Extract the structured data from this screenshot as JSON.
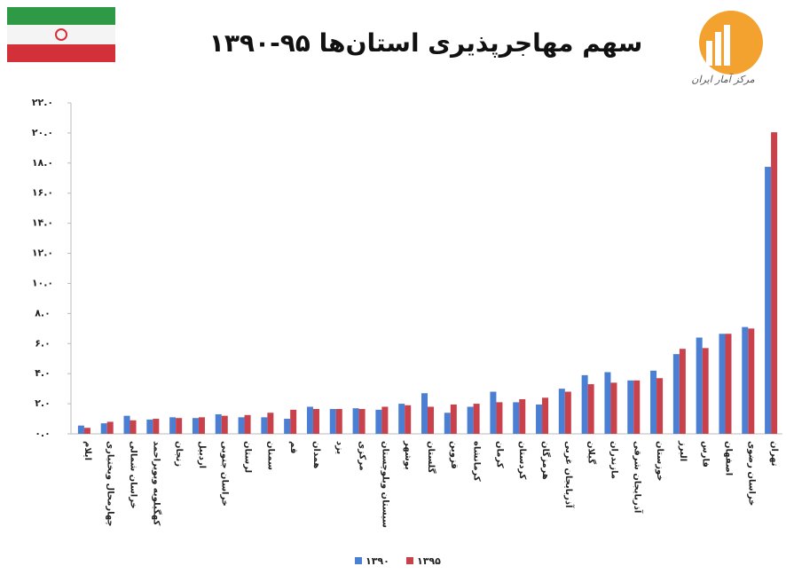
{
  "chart_data": {
    "type": "bar",
    "title": "سهم مهاجرپذیری استان‌ها ۹۵-۱۳۹۰",
    "logo_text": "مرکز آمار ایران",
    "categories": [
      "ایلام",
      "چهارمحال وبختیاری",
      "خراسان شمالی",
      "کهگیلویه وبویراحمد",
      "زنجان",
      "اردبیل",
      "خراسان جنوبی",
      "لرستان",
      "سمنان",
      "قم",
      "همدان",
      "یزد",
      "مرکزی",
      "سیستان وبلوچستان",
      "بوشهر",
      "گلستان",
      "قزوین",
      "کرمانشاه",
      "کرمان",
      "کردستان",
      "هرمزگان",
      "آذربایجان غربی",
      "گیلان",
      "مازندران",
      "آذربایجان شرقی",
      "خوزستان",
      "البرز",
      "فارس",
      "اصفهان",
      "خراسان رضوی",
      "تهران"
    ],
    "series": [
      {
        "name": "۱۳۹۰",
        "color": "#4a7fd4",
        "values": [
          0.55,
          0.7,
          1.2,
          0.95,
          1.1,
          1.05,
          1.3,
          1.1,
          1.1,
          1.0,
          1.8,
          1.65,
          1.7,
          1.6,
          2.0,
          2.7,
          1.4,
          1.8,
          2.8,
          2.1,
          1.95,
          3.0,
          3.9,
          4.1,
          3.55,
          4.2,
          5.3,
          6.4,
          6.65,
          7.1,
          17.75
        ]
      },
      {
        "name": "۱۳۹۵",
        "color": "#c8414b",
        "values": [
          0.4,
          0.8,
          0.9,
          1.0,
          1.05,
          1.1,
          1.2,
          1.25,
          1.4,
          1.6,
          1.65,
          1.65,
          1.65,
          1.8,
          1.9,
          1.8,
          1.95,
          2.0,
          2.1,
          2.3,
          2.4,
          2.8,
          3.3,
          3.4,
          3.55,
          3.7,
          5.65,
          5.7,
          6.65,
          7.0,
          20.05
        ]
      }
    ],
    "ylim": [
      0,
      22
    ],
    "yticks": [
      {
        "value": 0,
        "label": "۰.۰"
      },
      {
        "value": 2,
        "label": "۲.۰"
      },
      {
        "value": 4,
        "label": "۴.۰"
      },
      {
        "value": 6,
        "label": "۶.۰"
      },
      {
        "value": 8,
        "label": "۸.۰"
      },
      {
        "value": 10,
        "label": "۱۰.۰"
      },
      {
        "value": 12,
        "label": "۱۲.۰"
      },
      {
        "value": 14,
        "label": "۱۴.۰"
      },
      {
        "value": 16,
        "label": "۱۶.۰"
      },
      {
        "value": 18,
        "label": "۱۸.۰"
      },
      {
        "value": 20,
        "label": "۲۰.۰"
      },
      {
        "value": 22,
        "label": "۲۲.۰"
      }
    ],
    "grid": false,
    "legend": "bottom"
  }
}
